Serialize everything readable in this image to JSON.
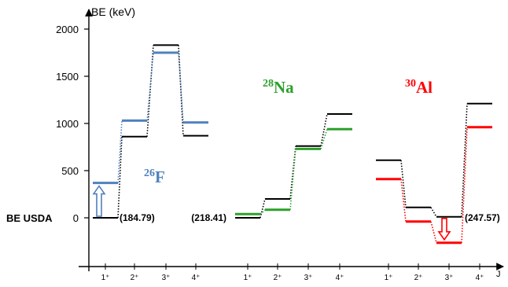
{
  "chart_data": {
    "type": "level-scheme",
    "ylabel": "BE (keV)",
    "xlabel": "J",
    "yticks": [
      0,
      500,
      1000,
      1500,
      2000
    ],
    "ylim": [
      -450,
      2100
    ],
    "baseline_label": "BE USDA",
    "colors": {
      "reference": "#000000",
      "F26": "#4f81bd",
      "Na28": "#2ca02c",
      "Al30": "#ff0000"
    },
    "nuclei": [
      {
        "key": "F26",
        "mass": "26",
        "symbol": "F",
        "usda_be": "(184.79)",
        "spins": [
          "1⁺",
          "2⁺",
          "3⁺",
          "4⁺"
        ],
        "reference_levels": [
          0,
          860,
          1830,
          870
        ],
        "levels": [
          370,
          1030,
          1750,
          1010
        ],
        "shift": "up"
      },
      {
        "key": "Na28",
        "mass": "28",
        "symbol": "Na",
        "usda_be": "(218.41)",
        "spins": [
          "1⁺",
          "2⁺",
          "3⁺",
          "4⁺"
        ],
        "reference_levels": [
          0,
          200,
          760,
          1100
        ],
        "levels": [
          40,
          85,
          730,
          940
        ],
        "shift": "none"
      },
      {
        "key": "Al30",
        "mass": "30",
        "symbol": "Al",
        "usda_be": "(247.57)",
        "spins": [
          "1⁺",
          "2⁺",
          "3⁺",
          "4⁺"
        ],
        "reference_levels": [
          610,
          110,
          10,
          1210
        ],
        "levels": [
          410,
          -40,
          -265,
          960
        ],
        "shift": "down"
      }
    ]
  }
}
